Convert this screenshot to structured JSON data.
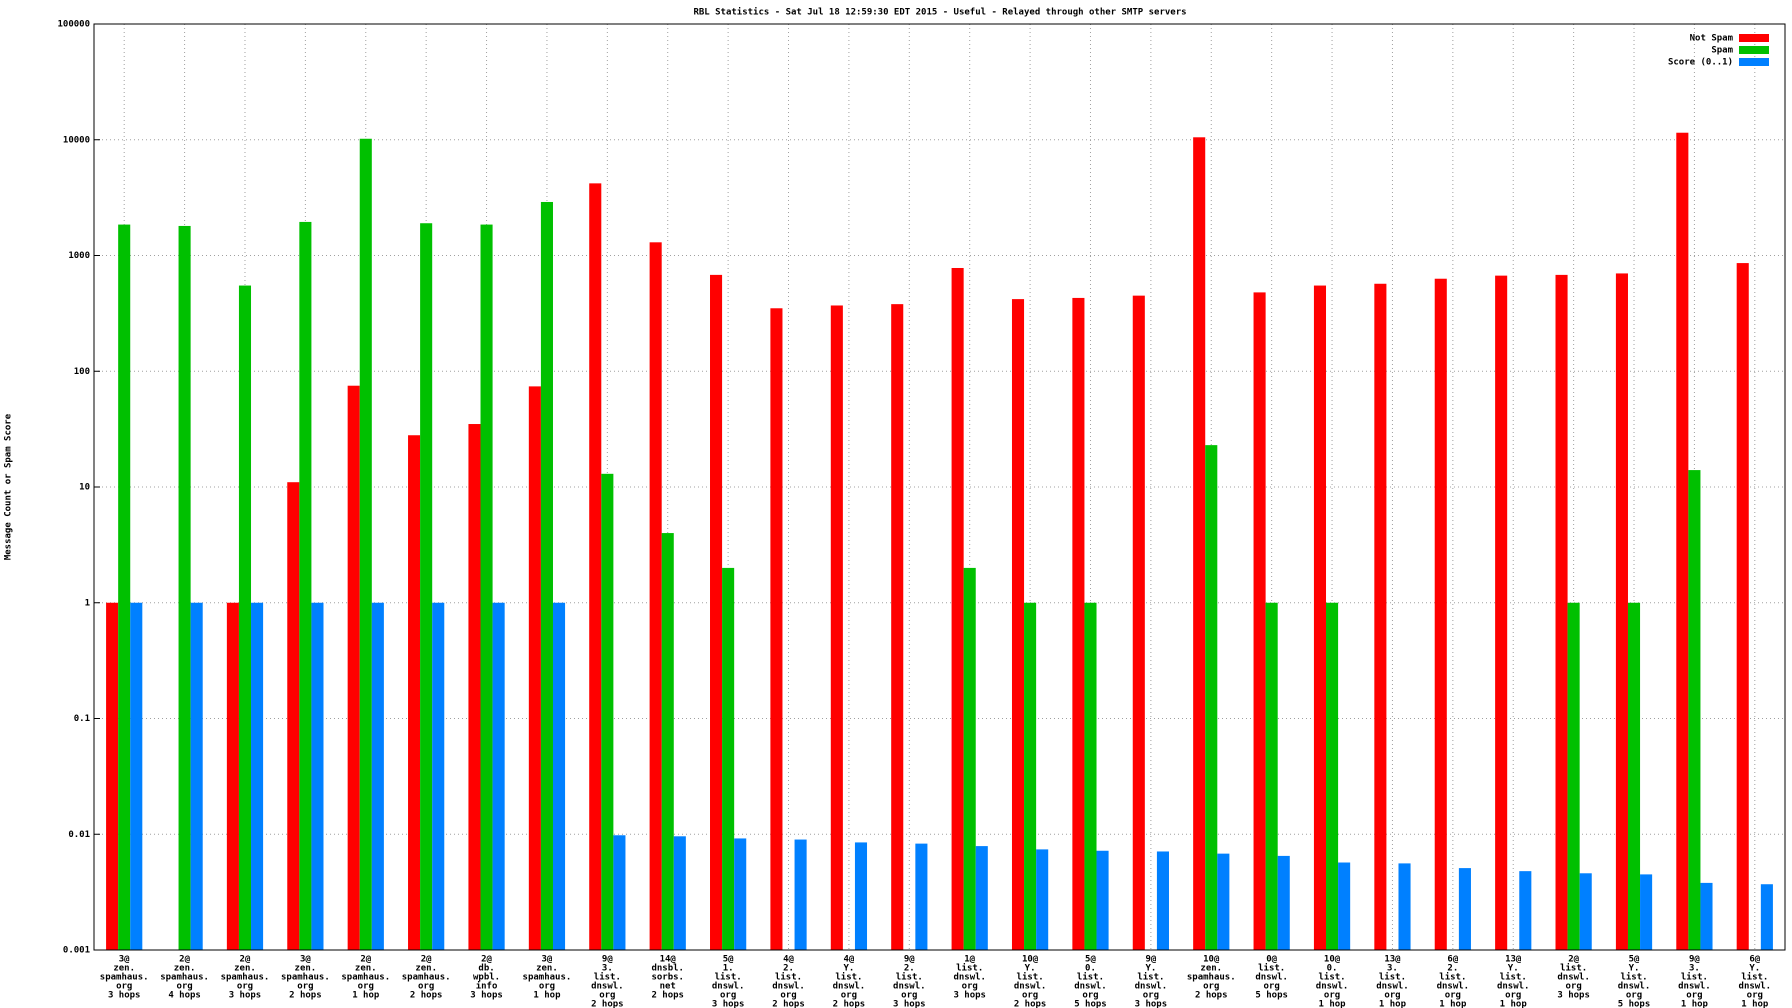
{
  "chart_data": {
    "type": "bar",
    "title": "RBL Statistics - Sat Jul 18 12:59:30 EDT 2015 - Useful - Relayed through other SMTP servers",
    "y_label": "Message Count or Spam Score",
    "yscale": "log",
    "ylim": [
      0.001,
      100000
    ],
    "yticks": [
      0.001,
      0.01,
      0.1,
      1,
      10,
      100,
      1000,
      10000,
      100000
    ],
    "grid": true,
    "legend": "top-right",
    "categories": [
      [
        "3@",
        "zen.",
        "spamhaus.",
        "org",
        "3 hops"
      ],
      [
        "2@",
        "zen.",
        "spamhaus.",
        "org",
        "4 hops"
      ],
      [
        "2@",
        "zen.",
        "spamhaus.",
        "org",
        "3 hops"
      ],
      [
        "3@",
        "zen.",
        "spamhaus.",
        "org",
        "2 hops"
      ],
      [
        "2@",
        "zen.",
        "spamhaus.",
        "org",
        "1 hop"
      ],
      [
        "2@",
        "zen.",
        "spamhaus.",
        "org",
        "2 hops"
      ],
      [
        "2@",
        "db.",
        "wpbl.",
        "info",
        "3 hops"
      ],
      [
        "3@",
        "zen.",
        "spamhaus.",
        "org",
        "1 hop"
      ],
      [
        "9@",
        "3.",
        "list.",
        "dnswl.",
        "org",
        "2 hops"
      ],
      [
        "14@",
        "dnsbl.",
        "sorbs.",
        "net",
        "2 hops"
      ],
      [
        "5@",
        "1.",
        "list.",
        "dnswl.",
        "org",
        "3 hops"
      ],
      [
        "4@",
        "2.",
        "list.",
        "dnswl.",
        "org",
        "2 hops"
      ],
      [
        "4@",
        "Y.",
        "list.",
        "dnswl.",
        "org",
        "2 hops"
      ],
      [
        "9@",
        "2.",
        "list.",
        "dnswl.",
        "org",
        "3 hops"
      ],
      [
        "1@",
        "list.",
        "dnswl.",
        "org",
        "3 hops"
      ],
      [
        "10@",
        "Y.",
        "list.",
        "dnswl.",
        "org",
        "2 hops"
      ],
      [
        "5@",
        "0.",
        "list.",
        "dnswl.",
        "org",
        "5 hops"
      ],
      [
        "9@",
        "Y.",
        "list.",
        "dnswl.",
        "org",
        "3 hops"
      ],
      [
        "10@",
        "zen.",
        "spamhaus.",
        "org",
        "2 hops"
      ],
      [
        "0@",
        "list.",
        "dnswl.",
        "org",
        "5 hops"
      ],
      [
        "10@",
        "0.",
        "list.",
        "dnswl.",
        "org",
        "1 hop"
      ],
      [
        "13@",
        "3.",
        "list.",
        "dnswl.",
        "org",
        "1 hop"
      ],
      [
        "6@",
        "2.",
        "list.",
        "dnswl.",
        "org",
        "1 hop"
      ],
      [
        "13@",
        "Y.",
        "list.",
        "dnswl.",
        "org",
        "1 hop"
      ],
      [
        "2@",
        "list.",
        "dnswl.",
        "org",
        "3 hops"
      ],
      [
        "5@",
        "Y.",
        "list.",
        "dnswl.",
        "org",
        "5 hops"
      ],
      [
        "9@",
        "3.",
        "list.",
        "dnswl.",
        "org",
        "1 hop"
      ],
      [
        "6@",
        "Y.",
        "list.",
        "dnswl.",
        "org",
        "1 hop"
      ]
    ],
    "series": [
      {
        "name": "Not Spam",
        "color": "#ff0000",
        "values": [
          1,
          null,
          1,
          11,
          75,
          28,
          35,
          74,
          4200,
          1300,
          680,
          350,
          370,
          380,
          780,
          420,
          430,
          450,
          10500,
          480,
          550,
          570,
          630,
          670,
          680,
          700,
          11500,
          860
        ]
      },
      {
        "name": "Spam",
        "color": "#00c000",
        "values": [
          1850,
          1800,
          550,
          1950,
          10200,
          1900,
          1850,
          2900,
          13,
          4,
          2,
          null,
          null,
          null,
          2,
          1,
          1,
          null,
          23,
          1,
          1,
          null,
          null,
          null,
          1,
          1,
          14,
          null
        ]
      },
      {
        "name": "Score (0..1)",
        "color": "#0080ff",
        "values": [
          1,
          1,
          1,
          1,
          1,
          1,
          1,
          1,
          0.0098,
          0.0096,
          0.0092,
          0.009,
          0.0085,
          0.0083,
          0.0079,
          0.0074,
          0.0072,
          0.0071,
          0.0068,
          0.0065,
          0.0057,
          0.0056,
          0.0051,
          0.0048,
          0.0046,
          0.0045,
          0.0038,
          0.0037
        ]
      }
    ]
  }
}
